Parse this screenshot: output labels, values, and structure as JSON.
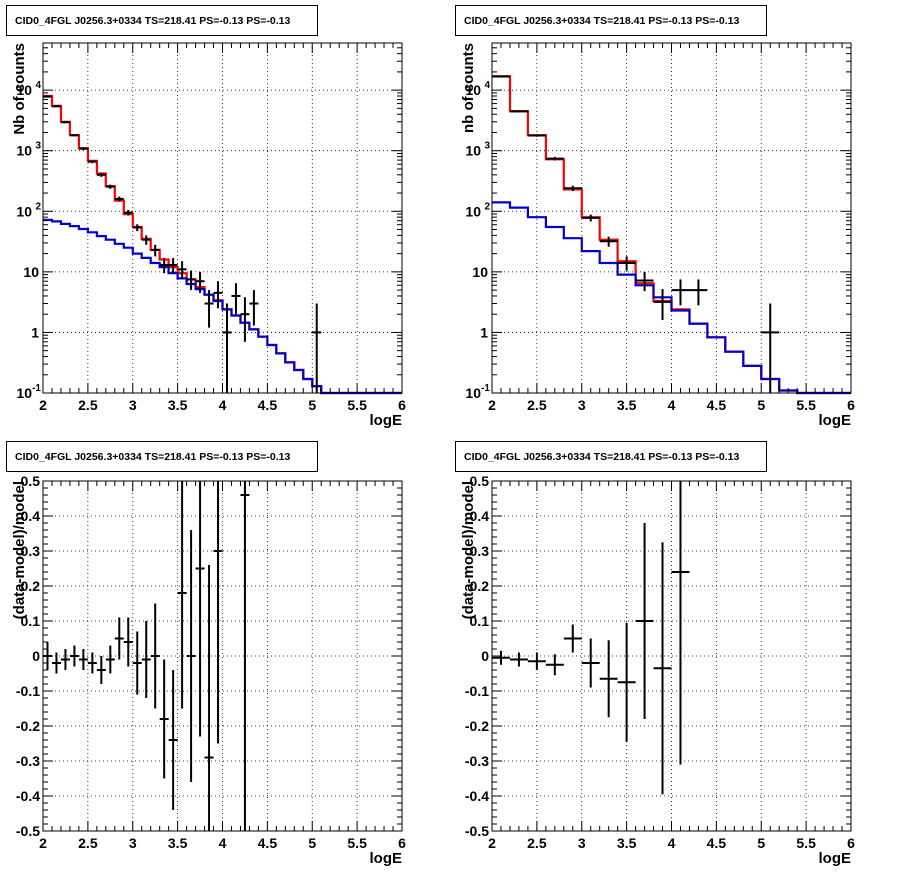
{
  "chart_data": [
    {
      "type": "line",
      "title": "CID0_4FGL J0256.3+0334 TS=218.41 PS=-0.13 PS=-0.13",
      "xlabel": "logE",
      "ylabel": "Nb of counts",
      "xscale": "linear",
      "yscale": "log",
      "xlim": [
        2,
        6
      ],
      "ylim": [
        0.1,
        60000
      ],
      "grid": true,
      "x_ticks": [
        "2",
        "2.5",
        "3",
        "3.5",
        "4",
        "4.5",
        "5",
        "5.5",
        "6"
      ],
      "y_ticks": [
        "10^-1",
        "1",
        "10",
        "10^2",
        "10^3",
        "10^4"
      ],
      "bin_edges": [
        2.0,
        2.1,
        2.2,
        2.3,
        2.4,
        2.5,
        2.6,
        2.7,
        2.8,
        2.9,
        3.0,
        3.1,
        3.2,
        3.3,
        3.4,
        3.5,
        3.6,
        3.7,
        3.8,
        3.9,
        4.0,
        4.1,
        4.2,
        4.3,
        4.4,
        4.5,
        4.6,
        4.7,
        4.8,
        4.9,
        5.0,
        5.1,
        5.2,
        5.3,
        5.4,
        5.5,
        5.6,
        5.7,
        5.8,
        5.9,
        6.0
      ],
      "series": [
        {
          "color": "#ff0000",
          "values": [
            8000,
            5500,
            3000,
            1800,
            1100,
            680,
            420,
            260,
            150,
            90,
            55,
            35,
            23,
            16,
            12,
            9.5,
            7.5,
            5.6,
            4.2,
            3.4,
            2.4,
            1.9,
            1.45,
            1.12,
            0.85,
            0.62,
            0.45,
            0.32,
            0.24,
            0.17,
            0.13,
            0.1,
            0.1,
            0.1,
            0.1,
            0.1,
            0.1,
            0.1,
            0.1,
            0.1
          ]
        },
        {
          "color": "#0000cc",
          "values": [
            72,
            68,
            62,
            57,
            51,
            45,
            39,
            34,
            29,
            25,
            20,
            17,
            14,
            12,
            9.5,
            7.8,
            6.3,
            5.2,
            4.2,
            3.3,
            2.4,
            1.9,
            1.45,
            1.12,
            0.85,
            0.62,
            0.45,
            0.32,
            0.24,
            0.17,
            0.13,
            0.1,
            0.1,
            0.1,
            0.1,
            0.1,
            0.1,
            0.1,
            0.1,
            0.1
          ]
        },
        {
          "color": "#000000",
          "points": [
            {
              "x": 2.05,
              "y": 7800,
              "lo": 7600,
              "hi": 8000
            },
            {
              "x": 2.15,
              "y": 5400,
              "lo": 5250,
              "hi": 5550
            },
            {
              "x": 2.25,
              "y": 2950,
              "lo": 2850,
              "hi": 3050
            },
            {
              "x": 2.35,
              "y": 1800,
              "lo": 1720,
              "hi": 1880
            },
            {
              "x": 2.45,
              "y": 1080,
              "lo": 1020,
              "hi": 1140
            },
            {
              "x": 2.55,
              "y": 660,
              "lo": 620,
              "hi": 700
            },
            {
              "x": 2.65,
              "y": 400,
              "lo": 370,
              "hi": 430
            },
            {
              "x": 2.75,
              "y": 255,
              "lo": 235,
              "hi": 275
            },
            {
              "x": 2.85,
              "y": 160,
              "lo": 145,
              "hi": 175
            },
            {
              "x": 2.95,
              "y": 95,
              "lo": 85,
              "hi": 105
            },
            {
              "x": 3.05,
              "y": 54,
              "lo": 47,
              "hi": 61
            },
            {
              "x": 3.15,
              "y": 34,
              "lo": 28,
              "hi": 40
            },
            {
              "x": 3.25,
              "y": 23,
              "lo": 18,
              "hi": 28
            },
            {
              "x": 3.35,
              "y": 13,
              "lo": 9.5,
              "hi": 17
            },
            {
              "x": 3.45,
              "y": 13,
              "lo": 9.5,
              "hi": 17
            },
            {
              "x": 3.55,
              "y": 11,
              "lo": 7.8,
              "hi": 15
            },
            {
              "x": 3.65,
              "y": 7.5,
              "lo": 5,
              "hi": 10.5
            },
            {
              "x": 3.75,
              "y": 7,
              "lo": 4.5,
              "hi": 10
            },
            {
              "x": 3.85,
              "y": 3,
              "lo": 1.2,
              "hi": 5
            },
            {
              "x": 3.95,
              "y": 4.5,
              "lo": 2.5,
              "hi": 7
            },
            {
              "x": 4.05,
              "y": 1,
              "lo": 0.1,
              "hi": 3
            },
            {
              "x": 4.15,
              "y": 4,
              "lo": 2,
              "hi": 6.5
            },
            {
              "x": 4.25,
              "y": 2,
              "lo": 0.7,
              "hi": 3.8
            },
            {
              "x": 4.35,
              "y": 3,
              "lo": 1.3,
              "hi": 5
            },
            {
              "x": 5.05,
              "y": 1,
              "lo": 0.1,
              "hi": 3
            }
          ]
        }
      ]
    },
    {
      "type": "line",
      "title": "CID0_4FGL J0256.3+0334 TS=218.41 PS=-0.13 PS=-0.13",
      "xlabel": "logE",
      "ylabel": "nb of counts",
      "xscale": "linear",
      "yscale": "log",
      "xlim": [
        2,
        6
      ],
      "ylim": [
        0.1,
        60000
      ],
      "grid": true,
      "x_ticks": [
        "2",
        "2.5",
        "3",
        "3.5",
        "4",
        "4.5",
        "5",
        "5.5",
        "6"
      ],
      "y_ticks": [
        "10^-1",
        "1",
        "10",
        "10^2",
        "10^3",
        "10^4"
      ],
      "bin_edges": [
        2.0,
        2.2,
        2.4,
        2.6,
        2.8,
        3.0,
        3.2,
        3.4,
        3.6,
        3.8,
        4.0,
        4.2,
        4.4,
        4.6,
        4.8,
        5.0,
        5.2,
        5.4,
        5.6,
        5.8,
        6.0
      ],
      "series": [
        {
          "color": "#ff0000",
          "values": [
            17000,
            4500,
            1800,
            720,
            230,
            80,
            34,
            15,
            6.5,
            3.3,
            2.4,
            1.4,
            0.83,
            0.48,
            0.28,
            0.17,
            0.11,
            0.1,
            0.1,
            0.1
          ]
        },
        {
          "color": "#0000cc",
          "values": [
            140,
            115,
            80,
            55,
            36,
            22,
            14,
            9,
            6,
            3.8,
            2.3,
            1.4,
            0.83,
            0.48,
            0.28,
            0.17,
            0.11,
            0.1,
            0.1,
            0.1
          ]
        },
        {
          "color": "#000000",
          "points": [
            {
              "x": 2.1,
              "y": 16800,
              "lo": 16500,
              "hi": 17100
            },
            {
              "x": 2.3,
              "y": 4450,
              "lo": 4300,
              "hi": 4600
            },
            {
              "x": 2.5,
              "y": 1780,
              "lo": 1700,
              "hi": 1860
            },
            {
              "x": 2.7,
              "y": 740,
              "lo": 690,
              "hi": 790
            },
            {
              "x": 2.9,
              "y": 240,
              "lo": 215,
              "hi": 265
            },
            {
              "x": 3.1,
              "y": 78,
              "lo": 68,
              "hi": 88
            },
            {
              "x": 3.3,
              "y": 32,
              "lo": 26,
              "hi": 38
            },
            {
              "x": 3.5,
              "y": 14,
              "lo": 10.5,
              "hi": 18
            },
            {
              "x": 3.7,
              "y": 7.2,
              "lo": 4.8,
              "hi": 10
            },
            {
              "x": 3.9,
              "y": 3.2,
              "lo": 1.6,
              "hi": 5.2
            },
            {
              "x": 4.1,
              "y": 5,
              "lo": 2.8,
              "hi": 7.5
            },
            {
              "x": 4.3,
              "y": 5,
              "lo": 2.8,
              "hi": 7.5
            },
            {
              "x": 5.1,
              "y": 1,
              "lo": 0.1,
              "hi": 3
            }
          ]
        }
      ]
    },
    {
      "type": "scatter",
      "title": "CID0_4FGL J0256.3+0334 TS=218.41 PS=-0.13 PS=-0.13",
      "xlabel": "logE",
      "ylabel": "(data-model)/model",
      "xlim": [
        2,
        6
      ],
      "ylim": [
        -0.5,
        0.5
      ],
      "grid": true,
      "x_ticks": [
        "2",
        "2.5",
        "3",
        "3.5",
        "4",
        "4.5",
        "5",
        "5.5",
        "6"
      ],
      "y_ticks": [
        "-0.5",
        "-0.4",
        "-0.3",
        "-0.2",
        "-0.1",
        "0",
        "0.1",
        "0.2",
        "0.3",
        "0.4",
        "0.5"
      ],
      "x_halfwidth": 0.05,
      "points": [
        {
          "x": 2.05,
          "y": 0.0,
          "err": 0.04
        },
        {
          "x": 2.15,
          "y": -0.02,
          "err": 0.03
        },
        {
          "x": 2.25,
          "y": -0.01,
          "err": 0.03
        },
        {
          "x": 2.35,
          "y": 0.0,
          "err": 0.03
        },
        {
          "x": 2.45,
          "y": -0.01,
          "err": 0.03
        },
        {
          "x": 2.55,
          "y": -0.02,
          "err": 0.03
        },
        {
          "x": 2.65,
          "y": -0.04,
          "err": 0.04
        },
        {
          "x": 2.75,
          "y": -0.01,
          "err": 0.04
        },
        {
          "x": 2.85,
          "y": 0.05,
          "err": 0.06
        },
        {
          "x": 2.95,
          "y": 0.04,
          "err": 0.07
        },
        {
          "x": 3.05,
          "y": -0.02,
          "err": 0.09
        },
        {
          "x": 3.15,
          "y": -0.01,
          "err": 0.11
        },
        {
          "x": 3.25,
          "y": 0.0,
          "err": 0.15
        },
        {
          "x": 3.35,
          "y": -0.18,
          "err": 0.17
        },
        {
          "x": 3.45,
          "y": -0.24,
          "err": 0.2
        },
        {
          "x": 3.55,
          "y": 0.18,
          "err": 0.33
        },
        {
          "x": 3.65,
          "y": 0.0,
          "err": 0.36
        },
        {
          "x": 3.75,
          "y": 0.25,
          "err": 0.48
        },
        {
          "x": 3.85,
          "y": -0.29,
          "err": 0.55
        },
        {
          "x": 3.95,
          "y": 0.3,
          "err": 0.55
        },
        {
          "x": 4.25,
          "y": 0.46,
          "err": 1.0
        }
      ]
    },
    {
      "type": "scatter",
      "title": "CID0_4FGL J0256.3+0334 TS=218.41 PS=-0.13 PS=-0.13",
      "xlabel": "logE",
      "ylabel": "(data-model)/model",
      "xlim": [
        2,
        6
      ],
      "ylim": [
        -0.5,
        0.5
      ],
      "grid": true,
      "x_ticks": [
        "2",
        "2.5",
        "3",
        "3.5",
        "4",
        "4.5",
        "5",
        "5.5",
        "6"
      ],
      "y_ticks": [
        "-0.5",
        "-0.4",
        "-0.3",
        "-0.2",
        "-0.1",
        "0",
        "0.1",
        "0.2",
        "0.3",
        "0.4",
        "0.5"
      ],
      "x_halfwidth": 0.1,
      "points": [
        {
          "x": 2.1,
          "y": -0.005,
          "err": 0.02
        },
        {
          "x": 2.3,
          "y": -0.01,
          "err": 0.02
        },
        {
          "x": 2.5,
          "y": -0.015,
          "err": 0.025
        },
        {
          "x": 2.7,
          "y": -0.025,
          "err": 0.03
        },
        {
          "x": 2.9,
          "y": 0.05,
          "err": 0.04
        },
        {
          "x": 3.1,
          "y": -0.02,
          "err": 0.07
        },
        {
          "x": 3.3,
          "y": -0.065,
          "err": 0.11
        },
        {
          "x": 3.5,
          "y": -0.075,
          "err": 0.17
        },
        {
          "x": 3.7,
          "y": 0.1,
          "err": 0.28
        },
        {
          "x": 3.9,
          "y": -0.035,
          "err": 0.36
        },
        {
          "x": 4.1,
          "y": 0.24,
          "err": 0.55
        }
      ]
    }
  ]
}
